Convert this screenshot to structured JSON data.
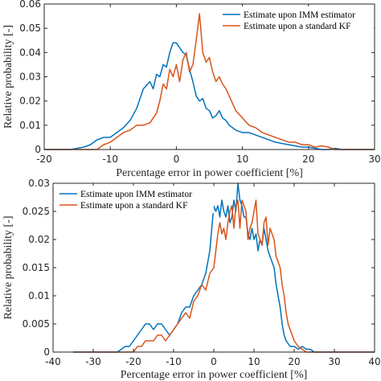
{
  "colors": {
    "imm": "#0072BD",
    "kf": "#D95319",
    "axis": "#262626"
  },
  "chart_data": [
    {
      "type": "line",
      "xlabel": "Percentage error in power coefficient [%]",
      "ylabel": "Relative probability [-]",
      "xlim": [
        -20,
        30
      ],
      "ylim": [
        0,
        0.06
      ],
      "x_ticks": [
        -20,
        -10,
        0,
        10,
        20,
        30
      ],
      "y_ticks": [
        0,
        0.01,
        0.02,
        0.03,
        0.04,
        0.05,
        0.06
      ],
      "x_tick_labels": [
        "-20",
        "-10",
        "0",
        "10",
        "20",
        "30"
      ],
      "y_tick_labels": [
        "0",
        "0.01",
        "0.02",
        "0.03",
        "0.04",
        "0.05",
        "0.06"
      ],
      "legend_position": "top-right",
      "grid": false,
      "series": [
        {
          "name": "Estimate upon IMM estimator",
          "x": [
            -20,
            -16,
            -15,
            -14,
            -13,
            -12,
            -11,
            -10,
            -9,
            -8,
            -7,
            -6,
            -5,
            -4,
            -3.5,
            -3,
            -2.5,
            -2,
            -1.5,
            -1,
            -0.5,
            0,
            0.5,
            1,
            1.5,
            2,
            2.5,
            3,
            3.5,
            4,
            4.5,
            5,
            5.5,
            6,
            6.5,
            7,
            7.5,
            8,
            9,
            10,
            11,
            12,
            13,
            14,
            15,
            16,
            17,
            18,
            19,
            20,
            21,
            22,
            23,
            24,
            25,
            30
          ],
          "y": [
            0,
            0,
            0.0005,
            0.001,
            0.002,
            0.004,
            0.005,
            0.005,
            0.007,
            0.009,
            0.012,
            0.017,
            0.025,
            0.028,
            0.025,
            0.031,
            0.03,
            0.035,
            0.034,
            0.04,
            0.044,
            0.044,
            0.042,
            0.04,
            0.039,
            0.033,
            0.028,
            0.022,
            0.02,
            0.021,
            0.017,
            0.016,
            0.013,
            0.014,
            0.016,
            0.013,
            0.012,
            0.01,
            0.008,
            0.007,
            0.007,
            0.006,
            0.005,
            0.004,
            0.003,
            0.0025,
            0.002,
            0.0015,
            0.001,
            0.001,
            0.0005,
            0,
            0,
            0.0005,
            0,
            0
          ]
        },
        {
          "name": "Estimate upon a standard KF",
          "x": [
            -20,
            -16,
            -14,
            -12,
            -11,
            -10,
            -9,
            -8,
            -7,
            -6,
            -5,
            -4,
            -3,
            -2.5,
            -2,
            -1.5,
            -1,
            -0.5,
            0,
            0.5,
            1,
            1.5,
            2,
            2.5,
            3,
            3.5,
            4,
            4.5,
            5,
            5.5,
            6,
            6.5,
            7,
            7.5,
            8,
            9,
            10,
            11,
            12,
            13,
            14,
            15,
            16,
            17,
            18,
            19,
            20,
            21,
            22,
            23,
            24,
            25,
            30
          ],
          "y": [
            0,
            0,
            0,
            0,
            0.002,
            0.003,
            0.005,
            0.007,
            0.008,
            0.01,
            0.01,
            0.011,
            0.015,
            0.02,
            0.027,
            0.025,
            0.033,
            0.03,
            0.035,
            0.028,
            0.037,
            0.04,
            0.032,
            0.035,
            0.045,
            0.056,
            0.04,
            0.036,
            0.038,
            0.032,
            0.028,
            0.03,
            0.027,
            0.025,
            0.022,
            0.016,
            0.013,
            0.01,
            0.009,
            0.007,
            0.006,
            0.005,
            0.004,
            0.003,
            0.003,
            0.002,
            0.002,
            0.001,
            0.0015,
            0.001,
            0,
            0,
            0
          ]
        }
      ]
    },
    {
      "type": "line",
      "xlabel": "Percentage error in power coefficient [%]",
      "ylabel": "Relative probability [-]",
      "xlim": [
        -40,
        40
      ],
      "ylim": [
        0,
        0.03
      ],
      "x_ticks": [
        -40,
        -30,
        -20,
        -10,
        0,
        10,
        20,
        30,
        40
      ],
      "y_ticks": [
        0,
        0.005,
        0.01,
        0.015,
        0.02,
        0.025,
        0.03
      ],
      "x_tick_labels": [
        "-40",
        "-30",
        "-20",
        "-10",
        "0",
        "10",
        "20",
        "30",
        "40"
      ],
      "y_tick_labels": [
        "0",
        "0.005",
        "0.01",
        "0.015",
        "0.02",
        "0.025",
        "0.03"
      ],
      "legend_position": "top-left",
      "grid": false,
      "series": [
        {
          "name": "Estimate upon IMM estimator",
          "x": [
            -35,
            -24,
            -22,
            -21,
            -20,
            -19,
            -18,
            -17,
            -16,
            -15,
            -14,
            -13,
            -12,
            -11,
            -10,
            -9,
            -8,
            -7,
            -6,
            -5,
            -4,
            -3,
            -2,
            -1,
            0,
            0.5,
            1,
            1.5,
            2,
            2.5,
            3,
            3.5,
            4,
            4.5,
            5,
            5.5,
            6,
            6.5,
            7,
            7.5,
            8,
            8.5,
            9,
            9.5,
            10,
            10.5,
            11,
            11.5,
            12,
            12.5,
            13,
            13.5,
            14,
            14.5,
            15,
            15.5,
            16,
            16.5,
            17,
            17.5,
            18,
            19,
            20,
            21,
            22,
            23,
            24,
            25,
            40
          ],
          "y": [
            0,
            0,
            0.001,
            0.001,
            0.002,
            0.003,
            0.004,
            0.005,
            0.005,
            0.004,
            0.005,
            0.005,
            0.004,
            0.003,
            0.004,
            0.005,
            0.007,
            0.008,
            0.008,
            0.01,
            0.011,
            0.012,
            0.014,
            0.018,
            0.026,
            0.025,
            0.026,
            0.024,
            0.027,
            0.025,
            0.024,
            0.026,
            0.023,
            0.024,
            0.027,
            0.025,
            0.03,
            0.027,
            0.026,
            0.024,
            0.024,
            0.021,
            0.02,
            0.022,
            0.02,
            0.021,
            0.018,
            0.02,
            0.019,
            0.022,
            0.02,
            0.018,
            0.017,
            0.016,
            0.015,
            0.012,
            0.01,
            0.008,
            0.005,
            0.003,
            0.002,
            0.001,
            0.001,
            0.0005,
            0.001,
            0.0005,
            0.0005,
            0,
            0
          ]
        },
        {
          "name": "Estimate upon a standard KF",
          "x": [
            -35,
            -20,
            -19,
            -18,
            -17,
            -16,
            -15,
            -14,
            -13,
            -12,
            -11,
            -10,
            -9,
            -8,
            -7,
            -6,
            -5,
            -4,
            -3,
            -2,
            -1,
            0,
            0.5,
            1,
            1.5,
            2,
            2.5,
            3,
            3.5,
            4,
            4.5,
            5,
            5.5,
            6,
            6.5,
            7,
            7.5,
            8,
            8.5,
            9,
            9.5,
            10,
            10.5,
            11,
            11.5,
            12,
            12.5,
            13,
            13.5,
            14,
            14.5,
            15,
            15.5,
            16,
            16.5,
            17,
            17.5,
            18,
            18.5,
            19,
            20,
            21,
            22,
            23,
            40
          ],
          "y": [
            0,
            0,
            0.001,
            0.001,
            0.002,
            0.002,
            0.002,
            0.003,
            0.003,
            0.002,
            0.003,
            0.004,
            0.005,
            0.006,
            0.007,
            0.006,
            0.009,
            0.01,
            0.012,
            0.011,
            0.014,
            0.015,
            0.018,
            0.021,
            0.023,
            0.021,
            0.022,
            0.02,
            0.023,
            0.025,
            0.026,
            0.022,
            0.026,
            0.027,
            0.022,
            0.027,
            0.026,
            0.025,
            0.02,
            0.022,
            0.023,
            0.025,
            0.027,
            0.021,
            0.02,
            0.019,
            0.023,
            0.024,
            0.019,
            0.022,
            0.021,
            0.02,
            0.017,
            0.016,
            0.015,
            0.012,
            0.01,
            0.007,
            0.005,
            0.004,
            0.002,
            0.001,
            0.0005,
            0,
            0
          ]
        }
      ]
    }
  ]
}
